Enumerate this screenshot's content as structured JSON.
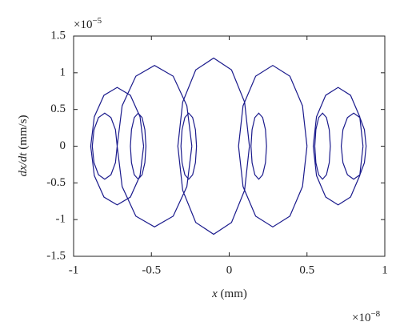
{
  "chart_data": {
    "type": "line",
    "xlabel": {
      "var": "x",
      "unit": "(mm)"
    },
    "ylabel": {
      "var": "dx/dt",
      "unit": "(mm/s)"
    },
    "x_multiplier": {
      "base": "×10",
      "exponent": "−8"
    },
    "y_multiplier": {
      "base": "×10",
      "exponent": "−5"
    },
    "xlim": [
      -1,
      1
    ],
    "xticks": [
      -1,
      -0.5,
      0,
      0.5,
      1
    ],
    "ylim": [
      -1.5,
      1.5
    ],
    "yticks": [
      -1.5,
      -1,
      -0.5,
      0,
      0.5,
      1,
      1.5
    ],
    "grid": false,
    "series": [
      {
        "color": "#1a1a8c",
        "x": [
          -0.72,
          -0.731,
          -0.76,
          -0.8,
          -0.84,
          -0.869,
          -0.88,
          -0.869,
          -0.84,
          -0.8,
          -0.76,
          -0.731,
          -0.72,
          null,
          -0.55,
          -0.573,
          -0.635,
          -0.72,
          -0.805,
          -0.867,
          -0.89,
          -0.867,
          -0.805,
          -0.72,
          -0.635,
          -0.573,
          -0.55,
          null,
          -0.535,
          -0.542,
          -0.56,
          -0.585,
          -0.61,
          -0.628,
          -0.635,
          -0.628,
          -0.61,
          -0.585,
          -0.56,
          -0.542,
          -0.535,
          null,
          -0.24,
          -0.272,
          -0.36,
          -0.48,
          -0.6,
          -0.688,
          -0.72,
          -0.688,
          -0.6,
          -0.48,
          -0.36,
          -0.272,
          -0.24,
          null,
          -0.21,
          -0.217,
          -0.235,
          -0.26,
          -0.285,
          -0.303,
          -0.31,
          -0.303,
          -0.285,
          -0.26,
          -0.235,
          -0.217,
          -0.21,
          null,
          0.13,
          0.099,
          0.015,
          -0.1,
          -0.215,
          -0.299,
          -0.33,
          -0.299,
          -0.215,
          -0.1,
          0.015,
          0.099,
          0.13,
          null,
          0.24,
          0.233,
          0.215,
          0.19,
          0.165,
          0.147,
          0.14,
          0.147,
          0.165,
          0.19,
          0.215,
          0.233,
          0.24,
          null,
          0.5,
          0.471,
          0.39,
          0.28,
          0.17,
          0.089,
          0.06,
          0.089,
          0.17,
          0.28,
          0.39,
          0.471,
          0.5,
          null,
          0.65,
          0.643,
          0.625,
          0.6,
          0.575,
          0.557,
          0.55,
          0.557,
          0.575,
          0.6,
          0.625,
          0.643,
          0.65,
          null,
          0.86,
          0.839,
          0.78,
          0.7,
          0.62,
          0.561,
          0.54,
          0.561,
          0.62,
          0.7,
          0.78,
          0.839,
          0.86,
          null,
          0.88,
          0.869,
          0.84,
          0.8,
          0.76,
          0.731,
          0.72,
          0.731,
          0.76,
          0.8,
          0.84,
          0.869,
          0.88
        ],
        "values": [
          0,
          0.225,
          0.39,
          0.45,
          0.39,
          0.225,
          0,
          -0.225,
          -0.39,
          -0.45,
          -0.39,
          -0.225,
          0,
          null,
          0,
          0.4,
          0.693,
          0.8,
          0.693,
          0.4,
          0,
          -0.4,
          -0.693,
          -0.8,
          -0.693,
          -0.4,
          0,
          null,
          0,
          0.225,
          0.39,
          0.45,
          0.39,
          0.225,
          0,
          -0.225,
          -0.39,
          -0.45,
          -0.39,
          -0.225,
          0,
          null,
          0,
          0.55,
          0.953,
          1.1,
          0.953,
          0.55,
          0,
          -0.55,
          -0.953,
          -1.1,
          -0.953,
          -0.55,
          0,
          null,
          0,
          0.225,
          0.39,
          0.45,
          0.39,
          0.225,
          0,
          -0.225,
          -0.39,
          -0.45,
          -0.39,
          -0.225,
          0,
          null,
          0,
          0.6,
          1.039,
          1.2,
          1.039,
          0.6,
          0,
          -0.6,
          -1.039,
          -1.2,
          -1.039,
          -0.6,
          0,
          null,
          0,
          0.225,
          0.39,
          0.45,
          0.39,
          0.225,
          0,
          -0.225,
          -0.39,
          -0.45,
          -0.39,
          -0.225,
          0,
          null,
          0,
          0.55,
          0.953,
          1.1,
          0.953,
          0.55,
          0,
          -0.55,
          -0.953,
          -1.1,
          -0.953,
          -0.55,
          0,
          null,
          0,
          0.225,
          0.39,
          0.45,
          0.39,
          0.225,
          0,
          -0.225,
          -0.39,
          -0.45,
          -0.39,
          -0.225,
          0,
          null,
          0,
          0.4,
          0.693,
          0.8,
          0.693,
          0.4,
          0,
          -0.4,
          -0.693,
          -0.8,
          -0.693,
          -0.4,
          0,
          null,
          0,
          0.225,
          0.39,
          0.45,
          0.39,
          0.225,
          0,
          -0.225,
          -0.39,
          -0.45,
          -0.39,
          -0.225,
          0
        ]
      }
    ]
  }
}
